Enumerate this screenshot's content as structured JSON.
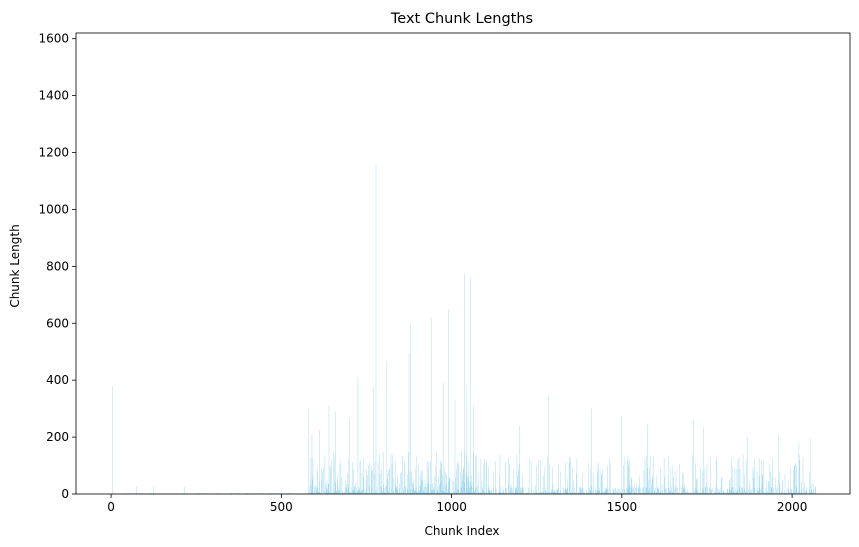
{
  "chart_data": {
    "type": "bar",
    "title": "Text Chunk Lengths",
    "xlabel": "Chunk Index",
    "ylabel": "Chunk Length",
    "xlim": [
      -103,
      2170
    ],
    "ylim": [
      0,
      1620
    ],
    "xticks": [
      0,
      500,
      1000,
      1500,
      2000
    ],
    "yticks": [
      0,
      200,
      400,
      600,
      800,
      1000,
      1200,
      1400,
      1600
    ],
    "grid": false,
    "bar_color": "#87ceeb",
    "n_bars": 2070,
    "notable_values": [
      {
        "x": 5,
        "y": 380
      },
      {
        "x": 75,
        "y": 28
      },
      {
        "x": 125,
        "y": 28
      },
      {
        "x": 215,
        "y": 25
      },
      {
        "x": 580,
        "y": 300
      },
      {
        "x": 590,
        "y": 210
      },
      {
        "x": 612,
        "y": 225
      },
      {
        "x": 640,
        "y": 310
      },
      {
        "x": 660,
        "y": 290
      },
      {
        "x": 700,
        "y": 265
      },
      {
        "x": 725,
        "y": 410
      },
      {
        "x": 770,
        "y": 375
      },
      {
        "x": 778,
        "y": 1160
      },
      {
        "x": 810,
        "y": 465
      },
      {
        "x": 875,
        "y": 495
      },
      {
        "x": 880,
        "y": 600
      },
      {
        "x": 940,
        "y": 620
      },
      {
        "x": 975,
        "y": 390
      },
      {
        "x": 990,
        "y": 650
      },
      {
        "x": 1010,
        "y": 330
      },
      {
        "x": 1038,
        "y": 775
      },
      {
        "x": 1045,
        "y": 380
      },
      {
        "x": 1055,
        "y": 765
      },
      {
        "x": 1065,
        "y": 310
      },
      {
        "x": 1200,
        "y": 240
      },
      {
        "x": 1285,
        "y": 345
      },
      {
        "x": 1410,
        "y": 300
      },
      {
        "x": 1500,
        "y": 275
      },
      {
        "x": 1575,
        "y": 245
      },
      {
        "x": 1710,
        "y": 260
      },
      {
        "x": 1740,
        "y": 235
      },
      {
        "x": 1870,
        "y": 200
      },
      {
        "x": 1960,
        "y": 205
      },
      {
        "x": 2020,
        "y": 180
      },
      {
        "x": 2055,
        "y": 195
      }
    ]
  }
}
